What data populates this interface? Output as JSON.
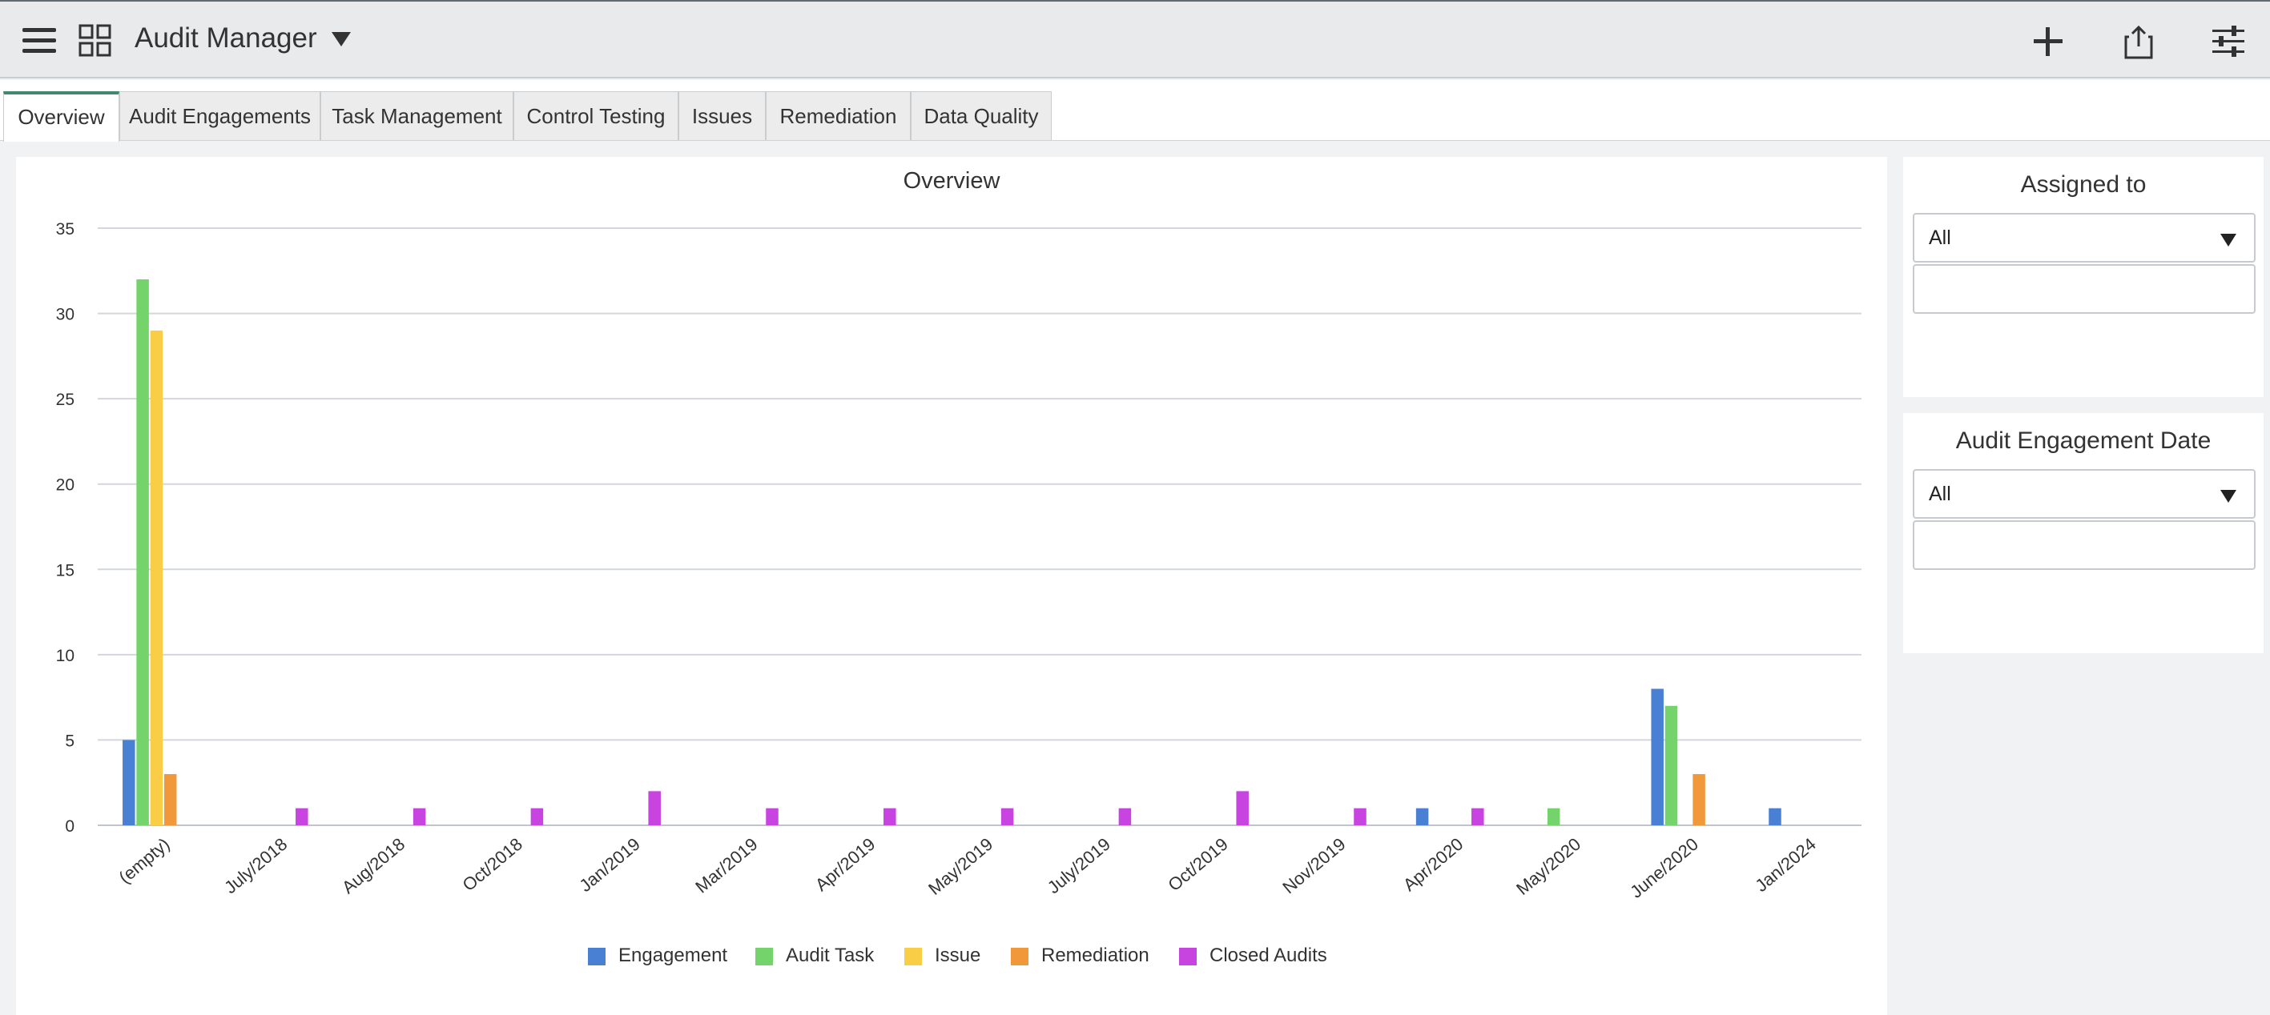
{
  "app": {
    "title": "Audit Manager",
    "icons": [
      "menu-icon",
      "dashboard-grid-icon",
      "dropdown-caret-icon",
      "add-icon",
      "share-icon",
      "filter-settings-icon"
    ]
  },
  "tabs": [
    {
      "label": "Overview",
      "active": true
    },
    {
      "label": "Audit Engagements",
      "active": false
    },
    {
      "label": "Task Management",
      "active": false
    },
    {
      "label": "Control Testing",
      "active": false
    },
    {
      "label": "Issues",
      "active": false
    },
    {
      "label": "Remediation",
      "active": false
    },
    {
      "label": "Data Quality",
      "active": false
    }
  ],
  "filters": {
    "assigned_to": {
      "title": "Assigned to",
      "selected": "All",
      "value": ""
    },
    "engagement_date": {
      "title": "Audit Engagement Date",
      "selected": "All",
      "value": ""
    }
  },
  "chart_data": {
    "type": "bar",
    "title": "Overview",
    "xlabel": "",
    "ylabel": "",
    "ylim": [
      0,
      35
    ],
    "yticks": [
      0,
      5,
      10,
      15,
      20,
      25,
      30,
      35
    ],
    "grid": true,
    "legend_position": "bottom",
    "categories": [
      "(empty)",
      "July/2018",
      "Aug/2018",
      "Oct/2018",
      "Jan/2019",
      "Mar/2019",
      "Apr/2019",
      "May/2019",
      "July/2019",
      "Oct/2019",
      "Nov/2019",
      "Apr/2020",
      "May/2020",
      "June/2020",
      "Jan/2024"
    ],
    "series": [
      {
        "name": "Engagement",
        "color": "#4a80d4",
        "values": [
          5,
          0,
          0,
          0,
          0,
          0,
          0,
          0,
          0,
          0,
          0,
          1,
          0,
          8,
          1
        ]
      },
      {
        "name": "Audit Task",
        "color": "#74d46b",
        "values": [
          32,
          0,
          0,
          0,
          0,
          0,
          0,
          0,
          0,
          0,
          0,
          0,
          1,
          7,
          0
        ]
      },
      {
        "name": "Issue",
        "color": "#f9cd45",
        "values": [
          29,
          0,
          0,
          0,
          0,
          0,
          0,
          0,
          0,
          0,
          0,
          0,
          0,
          0,
          0
        ]
      },
      {
        "name": "Remediation",
        "color": "#f0983a",
        "values": [
          3,
          0,
          0,
          0,
          0,
          0,
          0,
          0,
          0,
          0,
          0,
          0,
          0,
          3,
          0
        ]
      },
      {
        "name": "Closed Audits",
        "color": "#c744e0",
        "values": [
          0,
          1,
          1,
          1,
          2,
          1,
          1,
          1,
          1,
          2,
          1,
          1,
          0,
          0,
          0
        ]
      }
    ]
  }
}
